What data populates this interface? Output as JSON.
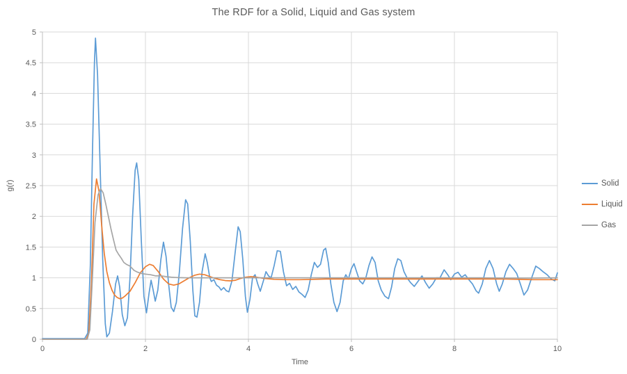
{
  "title": "The RDF for a Solid, Liquid and Gas system",
  "axes": {
    "x_title": "Time",
    "y_title": "g(r)"
  },
  "legend": {
    "items": [
      {
        "label": "Solid",
        "color": "#5B9BD5"
      },
      {
        "label": "Liquid",
        "color": "#ED7D31"
      },
      {
        "label": "Gas",
        "color": "#A5A5A5"
      }
    ]
  },
  "colors": {
    "gridline": "#D9D9D9",
    "axis_line": "#BFBFBF",
    "text": "#595959",
    "background": "#FFFFFF"
  },
  "chart_data": {
    "type": "line",
    "title": "The RDF for a Solid, Liquid and Gas system",
    "xlabel": "Time",
    "ylabel": "g(r)",
    "xlim": [
      0,
      10
    ],
    "ylim": [
      0,
      5
    ],
    "x_ticks": [
      0,
      2,
      4,
      6,
      8,
      10
    ],
    "y_ticks": [
      0,
      0.5,
      1,
      1.5,
      2,
      2.5,
      3,
      3.5,
      4,
      4.5,
      5
    ],
    "grid": true,
    "legend_position": "right",
    "series": [
      {
        "name": "Solid",
        "color": "#5B9BD5",
        "points": [
          [
            0,
            0.01
          ],
          [
            0.5,
            0.01
          ],
          [
            0.82,
            0.01
          ],
          [
            0.88,
            0.1
          ],
          [
            0.93,
            1.2
          ],
          [
            0.97,
            3.0
          ],
          [
            1.01,
            4.5
          ],
          [
            1.03,
            4.9
          ],
          [
            1.07,
            4.3
          ],
          [
            1.12,
            2.8
          ],
          [
            1.17,
            1.3
          ],
          [
            1.22,
            0.25
          ],
          [
            1.25,
            0.04
          ],
          [
            1.3,
            0.1
          ],
          [
            1.36,
            0.45
          ],
          [
            1.42,
            0.9
          ],
          [
            1.46,
            1.03
          ],
          [
            1.5,
            0.85
          ],
          [
            1.55,
            0.4
          ],
          [
            1.6,
            0.22
          ],
          [
            1.65,
            0.35
          ],
          [
            1.7,
            1.0
          ],
          [
            1.75,
            2.0
          ],
          [
            1.8,
            2.75
          ],
          [
            1.83,
            2.87
          ],
          [
            1.87,
            2.6
          ],
          [
            1.92,
            1.6
          ],
          [
            1.97,
            0.7
          ],
          [
            2.02,
            0.43
          ],
          [
            2.07,
            0.75
          ],
          [
            2.11,
            0.96
          ],
          [
            2.15,
            0.8
          ],
          [
            2.19,
            0.62
          ],
          [
            2.24,
            0.8
          ],
          [
            2.3,
            1.3
          ],
          [
            2.35,
            1.58
          ],
          [
            2.4,
            1.35
          ],
          [
            2.45,
            0.9
          ],
          [
            2.5,
            0.52
          ],
          [
            2.55,
            0.45
          ],
          [
            2.6,
            0.6
          ],
          [
            2.66,
            1.1
          ],
          [
            2.72,
            1.8
          ],
          [
            2.78,
            2.27
          ],
          [
            2.82,
            2.2
          ],
          [
            2.87,
            1.6
          ],
          [
            2.92,
            0.8
          ],
          [
            2.96,
            0.38
          ],
          [
            3.0,
            0.36
          ],
          [
            3.05,
            0.6
          ],
          [
            3.1,
            1.1
          ],
          [
            3.16,
            1.39
          ],
          [
            3.2,
            1.25
          ],
          [
            3.25,
            1.0
          ],
          [
            3.28,
            0.94
          ],
          [
            3.33,
            0.97
          ],
          [
            3.38,
            0.88
          ],
          [
            3.43,
            0.85
          ],
          [
            3.47,
            0.8
          ],
          [
            3.52,
            0.84
          ],
          [
            3.57,
            0.79
          ],
          [
            3.62,
            0.77
          ],
          [
            3.68,
            0.95
          ],
          [
            3.74,
            1.4
          ],
          [
            3.8,
            1.83
          ],
          [
            3.84,
            1.75
          ],
          [
            3.89,
            1.3
          ],
          [
            3.94,
            0.7
          ],
          [
            3.98,
            0.44
          ],
          [
            4.03,
            0.65
          ],
          [
            4.08,
            1.0
          ],
          [
            4.13,
            1.05
          ],
          [
            4.18,
            0.9
          ],
          [
            4.23,
            0.78
          ],
          [
            4.29,
            0.95
          ],
          [
            4.34,
            1.1
          ],
          [
            4.39,
            1.03
          ],
          [
            4.44,
            1.0
          ],
          [
            4.5,
            1.2
          ],
          [
            4.56,
            1.44
          ],
          [
            4.62,
            1.43
          ],
          [
            4.68,
            1.1
          ],
          [
            4.74,
            0.87
          ],
          [
            4.8,
            0.91
          ],
          [
            4.86,
            0.81
          ],
          [
            4.92,
            0.86
          ],
          [
            4.98,
            0.77
          ],
          [
            5.04,
            0.73
          ],
          [
            5.1,
            0.68
          ],
          [
            5.16,
            0.8
          ],
          [
            5.22,
            1.05
          ],
          [
            5.28,
            1.25
          ],
          [
            5.34,
            1.17
          ],
          [
            5.4,
            1.22
          ],
          [
            5.46,
            1.45
          ],
          [
            5.5,
            1.48
          ],
          [
            5.55,
            1.25
          ],
          [
            5.6,
            0.9
          ],
          [
            5.66,
            0.6
          ],
          [
            5.72,
            0.45
          ],
          [
            5.78,
            0.6
          ],
          [
            5.84,
            0.95
          ],
          [
            5.89,
            1.05
          ],
          [
            5.94,
            0.98
          ],
          [
            6.0,
            1.15
          ],
          [
            6.05,
            1.23
          ],
          [
            6.1,
            1.1
          ],
          [
            6.16,
            0.95
          ],
          [
            6.22,
            0.9
          ],
          [
            6.28,
            1.0
          ],
          [
            6.34,
            1.2
          ],
          [
            6.4,
            1.34
          ],
          [
            6.46,
            1.25
          ],
          [
            6.52,
            0.95
          ],
          [
            6.58,
            0.8
          ],
          [
            6.65,
            0.7
          ],
          [
            6.72,
            0.66
          ],
          [
            6.78,
            0.85
          ],
          [
            6.84,
            1.15
          ],
          [
            6.9,
            1.31
          ],
          [
            6.96,
            1.28
          ],
          [
            7.02,
            1.1
          ],
          [
            7.08,
            1.0
          ],
          [
            7.15,
            0.92
          ],
          [
            7.22,
            0.86
          ],
          [
            7.3,
            0.95
          ],
          [
            7.37,
            1.03
          ],
          [
            7.44,
            0.92
          ],
          [
            7.51,
            0.83
          ],
          [
            7.58,
            0.9
          ],
          [
            7.65,
            1.0
          ],
          [
            7.72,
            1.0
          ],
          [
            7.8,
            1.13
          ],
          [
            7.87,
            1.05
          ],
          [
            7.93,
            0.97
          ],
          [
            8.0,
            1.06
          ],
          [
            8.07,
            1.09
          ],
          [
            8.14,
            1.01
          ],
          [
            8.21,
            1.05
          ],
          [
            8.28,
            0.97
          ],
          [
            8.35,
            0.9
          ],
          [
            8.42,
            0.79
          ],
          [
            8.47,
            0.75
          ],
          [
            8.54,
            0.9
          ],
          [
            8.61,
            1.15
          ],
          [
            8.68,
            1.28
          ],
          [
            8.75,
            1.15
          ],
          [
            8.82,
            0.9
          ],
          [
            8.87,
            0.78
          ],
          [
            8.93,
            0.9
          ],
          [
            9.0,
            1.1
          ],
          [
            9.07,
            1.22
          ],
          [
            9.14,
            1.15
          ],
          [
            9.21,
            1.07
          ],
          [
            9.28,
            0.9
          ],
          [
            9.35,
            0.72
          ],
          [
            9.42,
            0.8
          ],
          [
            9.5,
            1.0
          ],
          [
            9.58,
            1.19
          ],
          [
            9.65,
            1.15
          ],
          [
            9.72,
            1.1
          ],
          [
            9.8,
            1.05
          ],
          [
            9.88,
            0.98
          ],
          [
            9.95,
            0.95
          ],
          [
            10.0,
            1.08
          ]
        ]
      },
      {
        "name": "Liquid",
        "color": "#ED7D31",
        "points": [
          [
            0,
            0.0
          ],
          [
            0.5,
            0.0
          ],
          [
            0.85,
            0.0
          ],
          [
            0.9,
            0.1
          ],
          [
            0.95,
            0.9
          ],
          [
            1.0,
            2.2
          ],
          [
            1.05,
            2.61
          ],
          [
            1.1,
            2.4
          ],
          [
            1.15,
            1.85
          ],
          [
            1.2,
            1.4
          ],
          [
            1.25,
            1.1
          ],
          [
            1.3,
            0.92
          ],
          [
            1.35,
            0.8
          ],
          [
            1.4,
            0.72
          ],
          [
            1.45,
            0.68
          ],
          [
            1.5,
            0.66
          ],
          [
            1.55,
            0.67
          ],
          [
            1.6,
            0.7
          ],
          [
            1.7,
            0.78
          ],
          [
            1.8,
            0.92
          ],
          [
            1.9,
            1.08
          ],
          [
            2.0,
            1.18
          ],
          [
            2.08,
            1.22
          ],
          [
            2.15,
            1.2
          ],
          [
            2.25,
            1.1
          ],
          [
            2.35,
            0.98
          ],
          [
            2.45,
            0.9
          ],
          [
            2.55,
            0.88
          ],
          [
            2.65,
            0.9
          ],
          [
            2.75,
            0.95
          ],
          [
            2.85,
            1.0
          ],
          [
            2.95,
            1.04
          ],
          [
            3.05,
            1.06
          ],
          [
            3.15,
            1.05
          ],
          [
            3.25,
            1.02
          ],
          [
            3.35,
            0.99
          ],
          [
            3.45,
            0.97
          ],
          [
            3.55,
            0.955
          ],
          [
            3.65,
            0.95
          ],
          [
            3.75,
            0.96
          ],
          [
            3.85,
            0.99
          ],
          [
            3.95,
            1.01
          ],
          [
            4.05,
            1.02
          ],
          [
            4.15,
            1.01
          ],
          [
            4.3,
            0.99
          ],
          [
            4.5,
            0.975
          ],
          [
            4.7,
            0.97
          ],
          [
            5.0,
            0.97
          ],
          [
            5.5,
            0.98
          ],
          [
            6.0,
            0.98
          ],
          [
            6.5,
            0.98
          ],
          [
            7.0,
            0.98
          ],
          [
            7.5,
            0.98
          ],
          [
            8.0,
            0.98
          ],
          [
            8.5,
            0.98
          ],
          [
            9.0,
            0.98
          ],
          [
            9.5,
            0.97
          ],
          [
            10.0,
            0.97
          ]
        ]
      },
      {
        "name": "Gas",
        "color": "#A5A5A5",
        "points": [
          [
            0,
            0.0
          ],
          [
            0.5,
            0.0
          ],
          [
            0.87,
            0.0
          ],
          [
            0.92,
            0.15
          ],
          [
            0.97,
            1.0
          ],
          [
            1.02,
            1.9
          ],
          [
            1.08,
            2.35
          ],
          [
            1.13,
            2.45
          ],
          [
            1.18,
            2.38
          ],
          [
            1.23,
            2.2
          ],
          [
            1.28,
            2.0
          ],
          [
            1.33,
            1.8
          ],
          [
            1.38,
            1.62
          ],
          [
            1.43,
            1.45
          ],
          [
            1.48,
            1.38
          ],
          [
            1.53,
            1.32
          ],
          [
            1.58,
            1.25
          ],
          [
            1.63,
            1.22
          ],
          [
            1.7,
            1.19
          ],
          [
            1.78,
            1.12
          ],
          [
            1.85,
            1.09
          ],
          [
            1.92,
            1.07
          ],
          [
            2.0,
            1.06
          ],
          [
            2.1,
            1.05
          ],
          [
            2.2,
            1.03
          ],
          [
            2.3,
            1.03
          ],
          [
            2.4,
            1.02
          ],
          [
            2.5,
            1.01
          ],
          [
            2.6,
            1.005
          ],
          [
            2.8,
            1.0
          ],
          [
            3.0,
            1.0
          ],
          [
            3.5,
            1.0
          ],
          [
            4.0,
            1.0
          ],
          [
            4.5,
            1.0
          ],
          [
            5.0,
            1.0
          ],
          [
            5.5,
            1.0
          ],
          [
            6.0,
            1.0
          ],
          [
            6.5,
            1.0
          ],
          [
            7.0,
            1.0
          ],
          [
            7.5,
            1.0
          ],
          [
            8.0,
            1.0
          ],
          [
            8.5,
            1.0
          ],
          [
            9.0,
            0.995
          ],
          [
            9.5,
            0.995
          ],
          [
            10.0,
            1.0
          ]
        ]
      }
    ]
  }
}
